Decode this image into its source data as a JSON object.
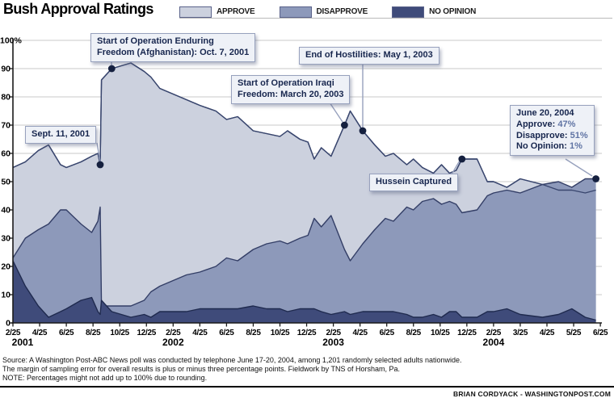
{
  "header": {
    "title": "Bush Approval Ratings"
  },
  "legend": [
    {
      "key": "approve",
      "label": "APPROVE"
    },
    {
      "key": "disapprove",
      "label": "DISAPPROVE"
    },
    {
      "key": "no_opinion",
      "label": "NO OPINION"
    }
  ],
  "annotations": [
    {
      "id": "sept11",
      "text": "Sept. 11, 2001",
      "date": "2001-09-11",
      "series": "approve"
    },
    {
      "id": "enduring",
      "lines": [
        "Start of Operation Enduring",
        "Freedom (Afghanistan): Oct. 7, 2001"
      ],
      "date": "2001-10-07",
      "series": "approve"
    },
    {
      "id": "iraqi",
      "lines": [
        "Start of Operation Iraqi",
        "Freedom: March 20, 2003"
      ],
      "date": "2003-03-20",
      "series": "approve"
    },
    {
      "id": "hostilities",
      "text": "End of Hostilities: May 1, 2003",
      "date": "2003-05-01",
      "series": "approve"
    },
    {
      "id": "hussein",
      "text": "Hussein Captured",
      "date": "2003-12-14",
      "series": "approve"
    },
    {
      "id": "june",
      "title": "June 20, 2004",
      "rows": [
        {
          "label": "Approve:",
          "value": "47%"
        },
        {
          "label": "Disapprove:",
          "value": "51%"
        },
        {
          "label": "No Opinion:",
          "value": "1%"
        }
      ],
      "date": "2004-06-20",
      "series": "disapprove"
    }
  ],
  "chart_data": {
    "type": "area",
    "title": "Bush Approval Ratings",
    "legend_position": "top",
    "grid": true,
    "colors": {
      "approve": "#ccd1de",
      "disapprove": "#8d99ba",
      "no_opinion": "#3f4b7a",
      "approve_line": "#39466e",
      "disapprove_line": "#333e66",
      "no_opinion_line": "#1f2a4e",
      "dot": "#15203f",
      "grid": "#c9c9c9",
      "axis": "#1a1a1a"
    },
    "y_axis": {
      "min": 0,
      "max": 100,
      "tick_step": 10,
      "top_label": "100%",
      "tick_labels": [
        "0",
        "10",
        "20",
        "30",
        "40",
        "50",
        "60",
        "70",
        "80",
        "90"
      ]
    },
    "x_axis": {
      "ticks": [
        "2/25",
        "4/25",
        "6/25",
        "8/25",
        "10/25",
        "12/25",
        "2/25",
        "4/25",
        "6/25",
        "8/25",
        "10/25",
        "12/25",
        "2/25",
        "4/25",
        "6/25",
        "8/25",
        "10/25",
        "12/25",
        "2/25",
        "3/25",
        "4/25",
        "5/25",
        "6/25"
      ],
      "years": [
        {
          "label": "2001",
          "tick": 0
        },
        {
          "label": "2002",
          "tick": 6
        },
        {
          "label": "2003",
          "tick": 12
        },
        {
          "label": "2004",
          "tick": 18
        }
      ]
    },
    "series_names": [
      "Approve",
      "Disapprove",
      "No Opinion"
    ],
    "points": [
      {
        "date": "2001-02-25",
        "approve": 55,
        "disapprove": 23,
        "no_opinion": 22
      },
      {
        "date": "2001-03-23",
        "approve": 57,
        "disapprove": 30,
        "no_opinion": 13
      },
      {
        "date": "2001-04-22",
        "approve": 61,
        "disapprove": 33,
        "no_opinion": 6
      },
      {
        "date": "2001-05-15",
        "approve": 63,
        "disapprove": 35,
        "no_opinion": 2
      },
      {
        "date": "2001-06-12",
        "approve": 56,
        "disapprove": 40,
        "no_opinion": 4
      },
      {
        "date": "2001-06-25",
        "approve": 55,
        "disapprove": 40,
        "no_opinion": 5
      },
      {
        "date": "2001-07-28",
        "approve": 57,
        "disapprove": 35,
        "no_opinion": 8
      },
      {
        "date": "2001-08-22",
        "approve": 59,
        "disapprove": 32,
        "no_opinion": 9
      },
      {
        "date": "2001-09-06",
        "approve": 60,
        "disapprove": 36,
        "no_opinion": 4
      },
      {
        "date": "2001-09-11",
        "approve": 56,
        "disapprove": 41,
        "no_opinion": 3
      },
      {
        "date": "2001-09-14",
        "approve": 86,
        "disapprove": 6,
        "no_opinion": 8
      },
      {
        "date": "2001-10-07",
        "approve": 90,
        "disapprove": 6,
        "no_opinion": 4
      },
      {
        "date": "2001-11-20",
        "approve": 92,
        "disapprove": 6,
        "no_opinion": 2
      },
      {
        "date": "2001-12-20",
        "approve": 89,
        "disapprove": 8,
        "no_opinion": 3
      },
      {
        "date": "2002-01-05",
        "approve": 87,
        "disapprove": 11,
        "no_opinion": 2
      },
      {
        "date": "2002-01-25",
        "approve": 83,
        "disapprove": 13,
        "no_opinion": 4
      },
      {
        "date": "2002-02-25",
        "approve": 81,
        "disapprove": 15,
        "no_opinion": 4
      },
      {
        "date": "2002-03-25",
        "approve": 79,
        "disapprove": 17,
        "no_opinion": 4
      },
      {
        "date": "2002-04-25",
        "approve": 77,
        "disapprove": 18,
        "no_opinion": 5
      },
      {
        "date": "2002-06-01",
        "approve": 75,
        "disapprove": 20,
        "no_opinion": 5
      },
      {
        "date": "2002-06-25",
        "approve": 72,
        "disapprove": 23,
        "no_opinion": 5
      },
      {
        "date": "2002-07-20",
        "approve": 73,
        "disapprove": 22,
        "no_opinion": 5
      },
      {
        "date": "2002-08-25",
        "approve": 68,
        "disapprove": 26,
        "no_opinion": 6
      },
      {
        "date": "2002-09-25",
        "approve": 67,
        "disapprove": 28,
        "no_opinion": 5
      },
      {
        "date": "2002-10-25",
        "approve": 66,
        "disapprove": 29,
        "no_opinion": 5
      },
      {
        "date": "2002-11-12",
        "approve": 68,
        "disapprove": 28,
        "no_opinion": 4
      },
      {
        "date": "2002-12-10",
        "approve": 65,
        "disapprove": 30,
        "no_opinion": 5
      },
      {
        "date": "2002-12-28",
        "approve": 64,
        "disapprove": 31,
        "no_opinion": 5
      },
      {
        "date": "2003-01-12",
        "approve": 58,
        "disapprove": 37,
        "no_opinion": 5
      },
      {
        "date": "2003-01-28",
        "approve": 62,
        "disapprove": 34,
        "no_opinion": 4
      },
      {
        "date": "2003-02-20",
        "approve": 59,
        "disapprove": 38,
        "no_opinion": 3
      },
      {
        "date": "2003-03-20",
        "approve": 70,
        "disapprove": 26,
        "no_opinion": 4
      },
      {
        "date": "2003-04-03",
        "approve": 75,
        "disapprove": 22,
        "no_opinion": 3
      },
      {
        "date": "2003-05-01",
        "approve": 68,
        "disapprove": 28,
        "no_opinion": 4
      },
      {
        "date": "2003-05-28",
        "approve": 63,
        "disapprove": 33,
        "no_opinion": 4
      },
      {
        "date": "2003-06-22",
        "approve": 59,
        "disapprove": 37,
        "no_opinion": 4
      },
      {
        "date": "2003-07-10",
        "approve": 60,
        "disapprove": 36,
        "no_opinion": 4
      },
      {
        "date": "2003-08-10",
        "approve": 56,
        "disapprove": 41,
        "no_opinion": 3
      },
      {
        "date": "2003-08-25",
        "approve": 58,
        "disapprove": 40,
        "no_opinion": 2
      },
      {
        "date": "2003-09-15",
        "approve": 55,
        "disapprove": 43,
        "no_opinion": 2
      },
      {
        "date": "2003-10-10",
        "approve": 53,
        "disapprove": 44,
        "no_opinion": 3
      },
      {
        "date": "2003-10-28",
        "approve": 56,
        "disapprove": 42,
        "no_opinion": 2
      },
      {
        "date": "2003-11-16",
        "approve": 53,
        "disapprove": 43,
        "no_opinion": 4
      },
      {
        "date": "2003-12-01",
        "approve": 54,
        "disapprove": 42,
        "no_opinion": 4
      },
      {
        "date": "2003-12-14",
        "approve": 58,
        "disapprove": 39,
        "no_opinion": 2
      },
      {
        "date": "2004-01-18",
        "approve": 58,
        "disapprove": 40,
        "no_opinion": 2
      },
      {
        "date": "2004-02-11",
        "approve": 50,
        "disapprove": 45,
        "no_opinion": 4
      },
      {
        "date": "2004-02-25",
        "approve": 50,
        "disapprove": 46,
        "no_opinion": 4
      },
      {
        "date": "2004-03-10",
        "approve": 48,
        "disapprove": 47,
        "no_opinion": 5
      },
      {
        "date": "2004-03-25",
        "approve": 51,
        "disapprove": 46,
        "no_opinion": 3
      },
      {
        "date": "2004-04-20",
        "approve": 49,
        "disapprove": 49,
        "no_opinion": 2
      },
      {
        "date": "2004-05-08",
        "approve": 47,
        "disapprove": 50,
        "no_opinion": 3
      },
      {
        "date": "2004-05-23",
        "approve": 47,
        "disapprove": 48,
        "no_opinion": 5
      },
      {
        "date": "2004-06-08",
        "approve": 46,
        "disapprove": 51,
        "no_opinion": 2
      },
      {
        "date": "2004-06-20",
        "approve": 47,
        "disapprove": 51,
        "no_opinion": 1
      }
    ]
  },
  "footer": {
    "source_lines": [
      "Source: A Washington Post-ABC News poll was conducted by telephone June 17-20, 2004, among 1,201 randomly selected adults nationwide.",
      "The margin of sampling error for overall results is plus or minus three percentage points. Fieldwork by TNS of Horsham, Pa.",
      "NOTE: Percentages might not add up to 100% due to rounding."
    ],
    "credit": "BRIAN CORDYACK - WASHINGTONPOST.COM"
  }
}
